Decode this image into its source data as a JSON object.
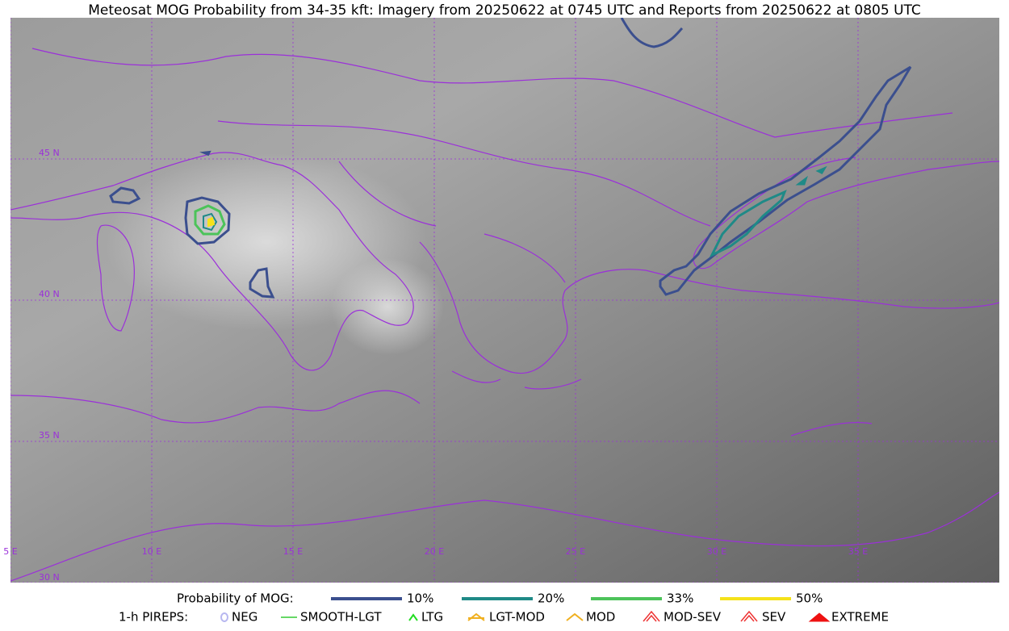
{
  "title": "Meteosat MOG Probability from 34-35 kft: Imagery from 20250622 at 0745 UTC and Reports from 20250622 at 0805 UTC",
  "map": {
    "lat_labels": [
      "45 N",
      "40 N",
      "35 N",
      "30 N"
    ],
    "lon_labels": [
      "5 E",
      "10 E",
      "15 E",
      "20 E",
      "25 E",
      "30 E",
      "35 E"
    ]
  },
  "legend": {
    "probability": {
      "label": "Probability of MOG:",
      "items": [
        {
          "label": "10%",
          "color": "#3b4f8e"
        },
        {
          "label": "20%",
          "color": "#1f8a87"
        },
        {
          "label": "33%",
          "color": "#4cc35a"
        },
        {
          "label": "50%",
          "color": "#f5e21a"
        }
      ]
    },
    "pireps": {
      "label": "1-h PIREPS:",
      "items": [
        {
          "label": "NEG",
          "color": "#b8b8f0"
        },
        {
          "label": "SMOOTH-LGT",
          "color": "#33cc33"
        },
        {
          "label": "LTG",
          "color": "#22dd22"
        },
        {
          "label": "LGT-MOD",
          "color": "#f0b020"
        },
        {
          "label": "MOD",
          "color": "#f0b020"
        },
        {
          "label": "MOD-SEV",
          "color": "#ee3333"
        },
        {
          "label": "SEV",
          "color": "#ee3333"
        },
        {
          "label": "EXTREME",
          "color": "#ee1111"
        }
      ]
    }
  }
}
